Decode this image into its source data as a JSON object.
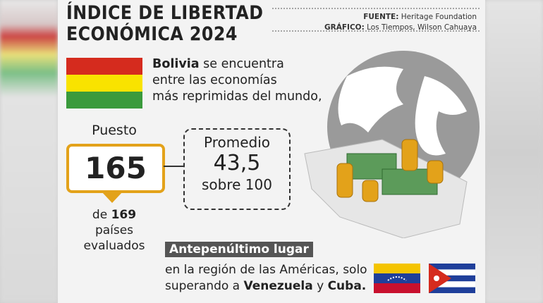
{
  "header": {
    "title_line1": "ÍNDICE DE LIBERTAD",
    "title_line2": "ECONÓMICA 2024",
    "source_label": "FUENTE:",
    "source": "Heritage Foundation",
    "credit_label": "GRÁFICO:",
    "credit": "Los Tiempos, Wilson Cahuaya"
  },
  "intro": {
    "country": "Bolivia",
    "lines": [
      "se encuentra",
      "entre las economías",
      "más reprimidas del mundo,"
    ]
  },
  "rank": {
    "label": "Puesto",
    "value": "165",
    "of": "de",
    "total": "169",
    "evaluated": [
      "países",
      "evaluados"
    ]
  },
  "average": {
    "label": "Promedio",
    "value": "43,5",
    "scale": "sobre 100"
  },
  "regional": {
    "tag": "Antepenúltimo lugar",
    "line1": "en la región de las Américas, solo",
    "line2": "superando a",
    "country1": "Venezuela",
    "conj": "y",
    "country2": "Cuba."
  }
}
